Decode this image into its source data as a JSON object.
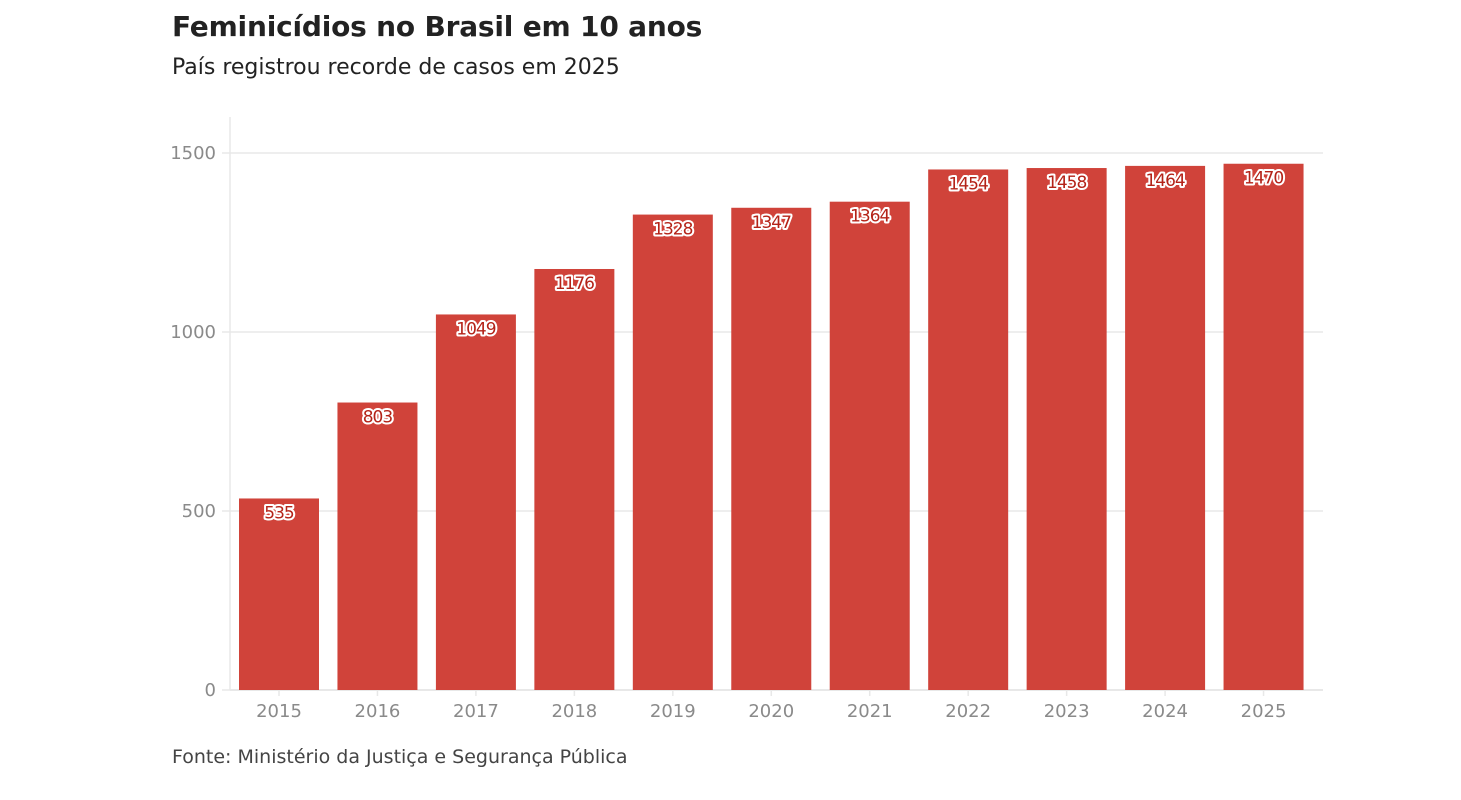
{
  "header": {
    "title": "Feminicídios no Brasil em 10 anos",
    "subtitle": "País registrou recorde de casos em 2025"
  },
  "footer": {
    "source": "Fonte: Ministério da Justiça e Segurança Pública"
  },
  "colors": {
    "bar": "#d0433a",
    "grid": "#e8e8e8",
    "axis_text": "#8a8a8a"
  },
  "chart_data": {
    "type": "bar",
    "title": "Feminicídios no Brasil em 10 anos",
    "subtitle": "País registrou recorde de casos em 2025",
    "xlabel": "",
    "ylabel": "",
    "categories": [
      "2015",
      "2016",
      "2017",
      "2018",
      "2019",
      "2020",
      "2021",
      "2022",
      "2023",
      "2024",
      "2025"
    ],
    "values": [
      535,
      803,
      1049,
      1176,
      1328,
      1347,
      1364,
      1454,
      1458,
      1464,
      1470
    ],
    "data_labels": [
      "535",
      "803",
      "1049",
      "1176",
      "1328",
      "1347",
      "1364",
      "1454",
      "1458",
      "1464",
      "1470"
    ],
    "ylim": [
      0,
      1600
    ],
    "yticks": [
      0,
      500,
      1000,
      1500
    ],
    "ytick_labels": [
      "0",
      "500",
      "1000",
      "1500"
    ],
    "grid": true,
    "legend": "none",
    "source": "Fonte: Ministério da Justiça e Segurança Pública"
  }
}
